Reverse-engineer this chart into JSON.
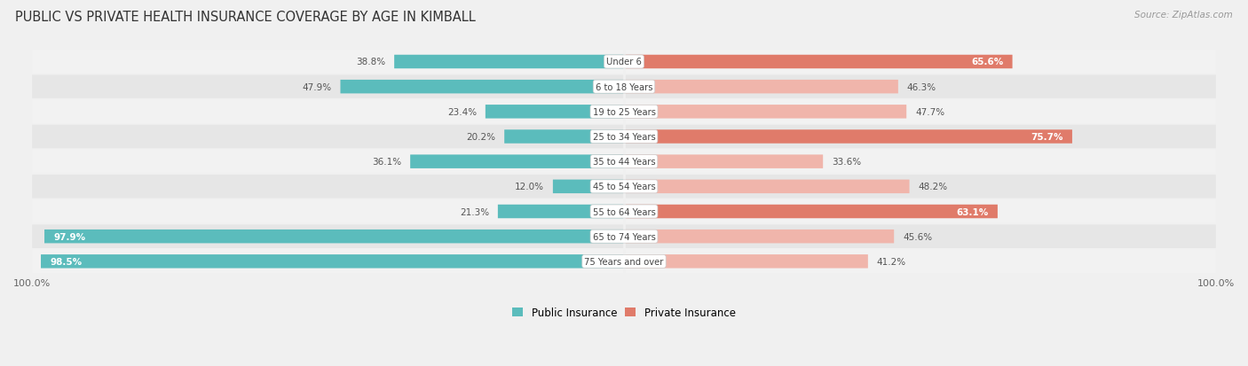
{
  "title": "PUBLIC VS PRIVATE HEALTH INSURANCE COVERAGE BY AGE IN KIMBALL",
  "source": "Source: ZipAtlas.com",
  "categories": [
    "Under 6",
    "6 to 18 Years",
    "19 to 25 Years",
    "25 to 34 Years",
    "35 to 44 Years",
    "45 to 54 Years",
    "55 to 64 Years",
    "65 to 74 Years",
    "75 Years and over"
  ],
  "public_values": [
    38.8,
    47.9,
    23.4,
    20.2,
    36.1,
    12.0,
    21.3,
    97.9,
    98.5
  ],
  "private_values": [
    65.6,
    46.3,
    47.7,
    75.7,
    33.6,
    48.2,
    63.1,
    45.6,
    41.2
  ],
  "public_color": "#5bbcbc",
  "private_color_dark": "#e07b6a",
  "private_color_light": "#f0b5ab",
  "row_bg_light": "#f2f2f2",
  "row_bg_dark": "#e6e6e6",
  "fig_bg": "#f0f0f0",
  "title_fontsize": 10.5,
  "label_fontsize": 8.0,
  "max_value": 100.0,
  "legend_public": "Public Insurance",
  "legend_private": "Private Insurance",
  "private_dark_threshold": 55.0
}
